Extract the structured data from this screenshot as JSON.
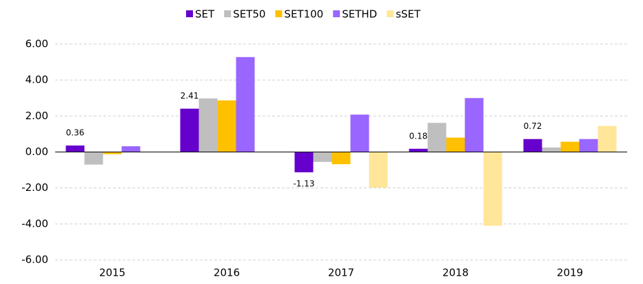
{
  "chart_data": {
    "type": "bar",
    "categories": [
      "2015",
      "2016",
      "2017",
      "2018",
      "2019"
    ],
    "series": [
      {
        "name": "SET",
        "color": "#6600cc",
        "values": [
          0.36,
          2.41,
          -1.13,
          0.18,
          0.72
        ],
        "value_labels": [
          "0.36",
          "2.41",
          "-1.13",
          "0.18",
          "0.72"
        ]
      },
      {
        "name": "SET50",
        "color": "#bfbfbf",
        "values": [
          -0.7,
          2.98,
          -0.55,
          1.62,
          0.25
        ]
      },
      {
        "name": "SET100",
        "color": "#ffc000",
        "values": [
          -0.12,
          2.87,
          -0.68,
          0.8,
          0.57
        ]
      },
      {
        "name": "SETHD",
        "color": "#9966ff",
        "values": [
          0.32,
          5.28,
          2.08,
          3.0,
          0.72
        ]
      },
      {
        "name": "sSET",
        "color": "#ffe699",
        "values": [
          0,
          0,
          -1.98,
          -4.1,
          1.45
        ]
      }
    ],
    "ylim": [
      -6,
      6
    ],
    "yticks": [
      {
        "value": -6,
        "label": "-6.00"
      },
      {
        "value": -4,
        "label": "-4.00"
      },
      {
        "value": -2,
        "label": "-2.00"
      },
      {
        "value": 0,
        "label": "0.00"
      },
      {
        "value": 2,
        "label": "2.00"
      },
      {
        "value": 4,
        "label": "4.00"
      },
      {
        "value": 6,
        "label": "6.00"
      }
    ],
    "grid": true,
    "legend": "top"
  }
}
